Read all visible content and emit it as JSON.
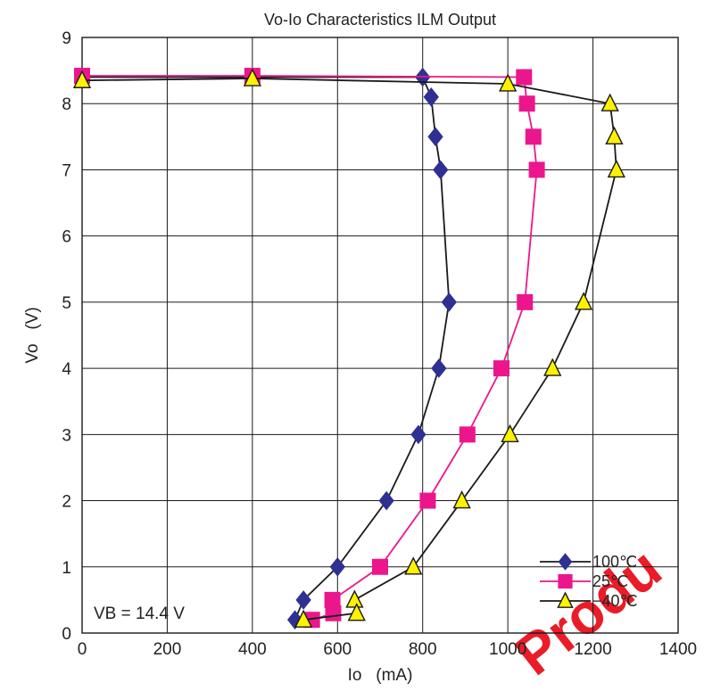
{
  "chart_data": {
    "type": "line",
    "title": "Vo-Io Characteristics  ILM Output",
    "xlabel": "Io   (mA)",
    "ylabel": "Vo   (V)",
    "xlim": [
      0,
      1400
    ],
    "ylim": [
      0,
      9
    ],
    "xticks": [
      0,
      200,
      400,
      600,
      800,
      1000,
      1200,
      1400
    ],
    "yticks": [
      0,
      1,
      2,
      3,
      4,
      5,
      6,
      7,
      8,
      9
    ],
    "grid": true,
    "legend_position": "bottom-right",
    "annotation": "VB = 14.4 V",
    "watermark": "Produ",
    "series": [
      {
        "name": "100℃",
        "marker": "diamond",
        "color": "#2e3192",
        "line_color": "#1a1a1a",
        "points": [
          [
            0,
            8.4
          ],
          [
            400,
            8.4
          ],
          [
            800,
            8.4
          ],
          [
            820,
            8.1
          ],
          [
            830,
            7.5
          ],
          [
            842,
            7.0
          ],
          [
            862,
            5.0
          ],
          [
            838,
            4.0
          ],
          [
            790,
            3.0
          ],
          [
            715,
            2.0
          ],
          [
            600,
            1.0
          ],
          [
            520,
            0.5
          ],
          [
            500,
            0.2
          ]
        ]
      },
      {
        "name": "25℃",
        "marker": "square",
        "color": "#ec168c",
        "line_color": "#ec168c",
        "points": [
          [
            0,
            8.42
          ],
          [
            400,
            8.42
          ],
          [
            1038,
            8.4
          ],
          [
            1045,
            8.0
          ],
          [
            1060,
            7.5
          ],
          [
            1068,
            7.0
          ],
          [
            1040,
            5.0
          ],
          [
            985,
            4.0
          ],
          [
            905,
            3.0
          ],
          [
            812,
            2.0
          ],
          [
            700,
            1.0
          ],
          [
            588,
            0.5
          ],
          [
            590,
            0.3
          ],
          [
            540,
            0.2
          ]
        ]
      },
      {
        "name": "−40℃",
        "marker": "triangle",
        "color": "#fff200",
        "line_color": "#1a1a1a",
        "points": [
          [
            0,
            8.35
          ],
          [
            400,
            8.38
          ],
          [
            1000,
            8.3
          ],
          [
            1240,
            8.0
          ],
          [
            1250,
            7.5
          ],
          [
            1255,
            7.0
          ],
          [
            1178,
            5.0
          ],
          [
            1105,
            4.0
          ],
          [
            1005,
            3.0
          ],
          [
            892,
            2.0
          ],
          [
            778,
            1.0
          ],
          [
            640,
            0.5
          ],
          [
            645,
            0.3
          ],
          [
            520,
            0.2
          ]
        ]
      }
    ]
  }
}
